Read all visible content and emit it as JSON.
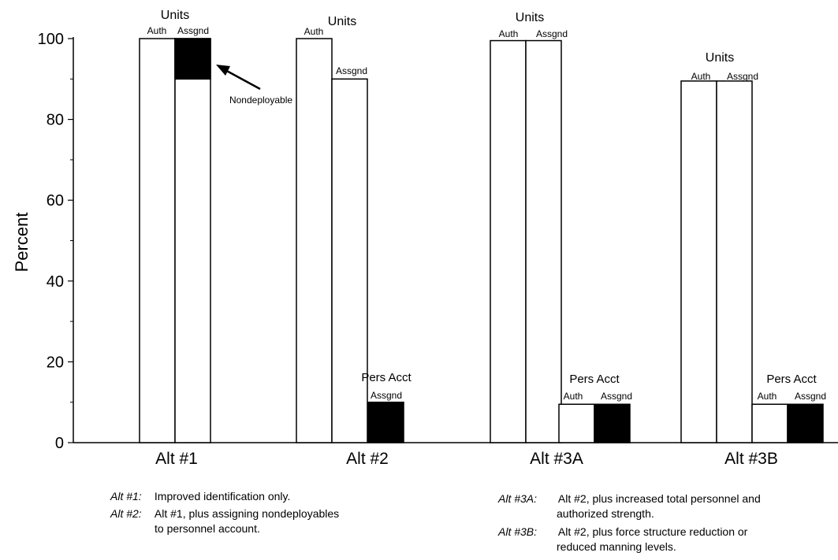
{
  "chart_data": {
    "type": "bar",
    "ylabel": "Percent",
    "ylim": [
      0,
      100
    ],
    "yticks": [
      0,
      20,
      40,
      60,
      80,
      100
    ],
    "categories": [
      "Alt #1",
      "Alt #2",
      "Alt #3A",
      "Alt #3B"
    ],
    "groups": [
      {
        "category": "Alt #1",
        "bars": [
          {
            "group_label": "Units",
            "label": "Auth",
            "value": 100,
            "fill": "white"
          },
          {
            "group_label": "Units",
            "label": "Assgnd",
            "value": 100,
            "fill": "white",
            "nondeployable_value": 10
          }
        ]
      },
      {
        "category": "Alt #2",
        "bars": [
          {
            "group_label": "Units",
            "label": "Auth",
            "value": 100,
            "fill": "white"
          },
          {
            "group_label": "Units",
            "label": "Assgnd",
            "value": 90,
            "fill": "white"
          },
          {
            "group_label": "Pers Acct",
            "label": "Assgnd",
            "value": 10,
            "fill": "black"
          }
        ]
      },
      {
        "category": "Alt #3A",
        "bars": [
          {
            "group_label": "Units",
            "label": "Auth",
            "value": 99.5,
            "fill": "white"
          },
          {
            "group_label": "Units",
            "label": "Assgnd",
            "value": 99.5,
            "fill": "white"
          },
          {
            "group_label": "Pers Acct",
            "label": "Auth",
            "value": 9.5,
            "fill": "white"
          },
          {
            "group_label": "Pers Acct",
            "label": "Assgnd",
            "value": 9.5,
            "fill": "black"
          }
        ]
      },
      {
        "category": "Alt #3B",
        "bars": [
          {
            "group_label": "Units",
            "label": "Auth",
            "value": 89.5,
            "fill": "white"
          },
          {
            "group_label": "Units",
            "label": "Assgnd",
            "value": 89.5,
            "fill": "white"
          },
          {
            "group_label": "Pers Acct",
            "label": "Auth",
            "value": 9.5,
            "fill": "white"
          },
          {
            "group_label": "Pers Acct",
            "label": "Assgnd",
            "value": 9.5,
            "fill": "black"
          }
        ]
      }
    ],
    "annotations": [
      {
        "text": "Nondeployable",
        "points_to": "Alt #1 Units Assgnd"
      }
    ]
  },
  "notes": {
    "left": [
      {
        "key": "Alt #1:",
        "text": "Improved identification only."
      },
      {
        "key": "Alt #2:",
        "text": "Alt #1, plus assigning nondeployables",
        "text2": "to personnel account."
      }
    ],
    "right": [
      {
        "key": "Alt #3A:",
        "text": "Alt #2, plus increased total personnel and",
        "text2": "authorized strength."
      },
      {
        "key": "Alt #3B:",
        "text": "Alt #2, plus force structure reduction or",
        "text2": "reduced manning levels."
      }
    ]
  }
}
